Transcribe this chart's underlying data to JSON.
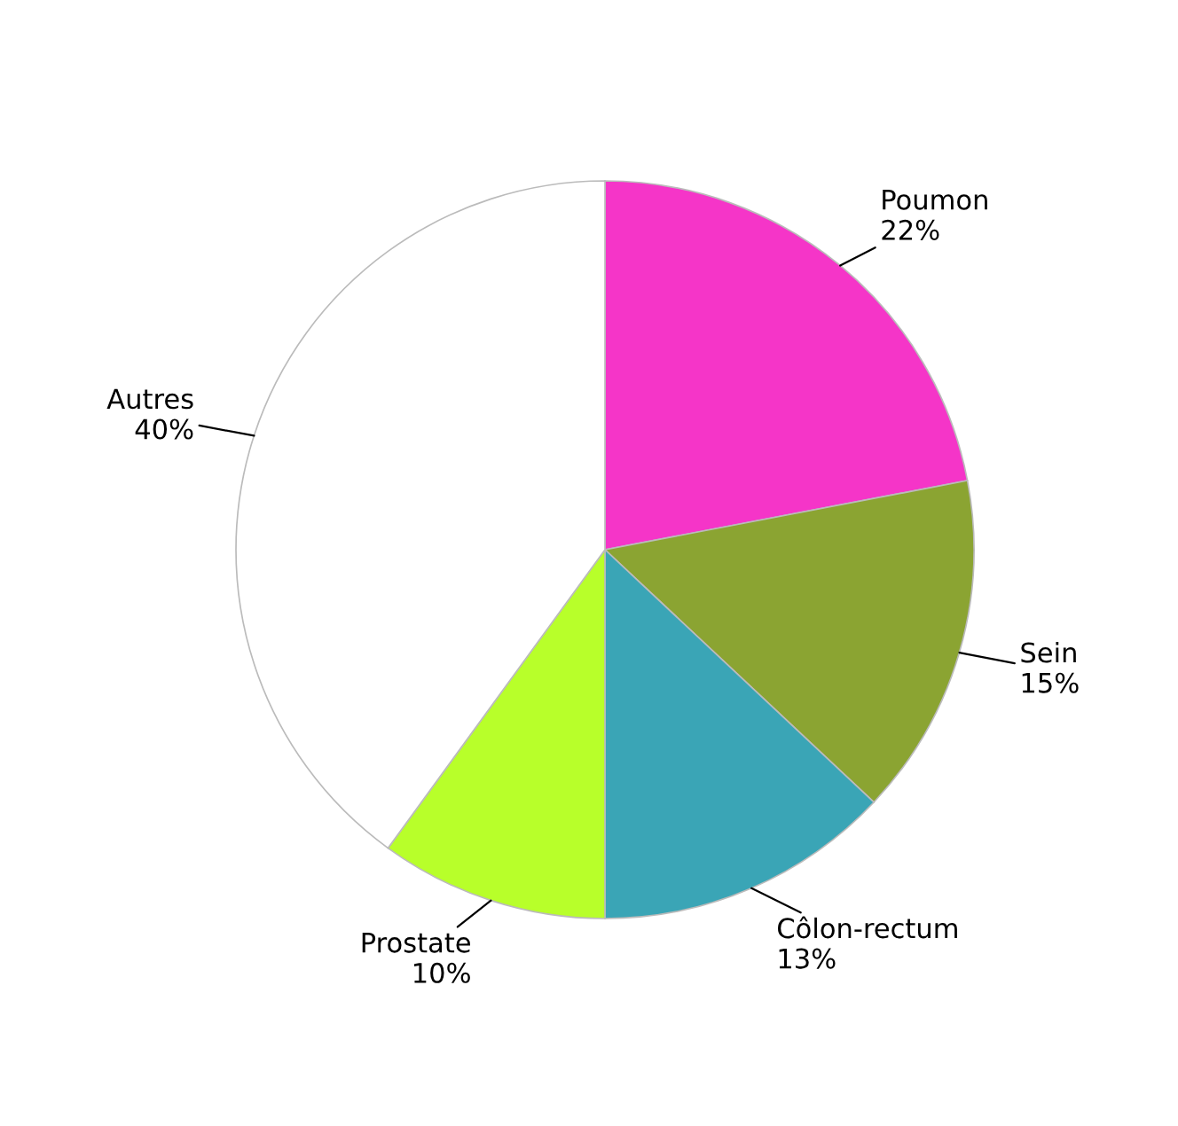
{
  "chart_data": {
    "type": "pie",
    "categories": [
      "Poumon",
      "Sein",
      "Côlon-rectum",
      "Prostate",
      "Autres"
    ],
    "values": [
      22,
      15,
      13,
      10,
      40
    ],
    "value_labels": [
      "22%",
      "15%",
      "13%",
      "10%",
      "40%"
    ],
    "colors": [
      "#f535c8",
      "#8ba432",
      "#3aa5b6",
      "#b8ff2a",
      "#ffffff"
    ],
    "legend": false
  }
}
